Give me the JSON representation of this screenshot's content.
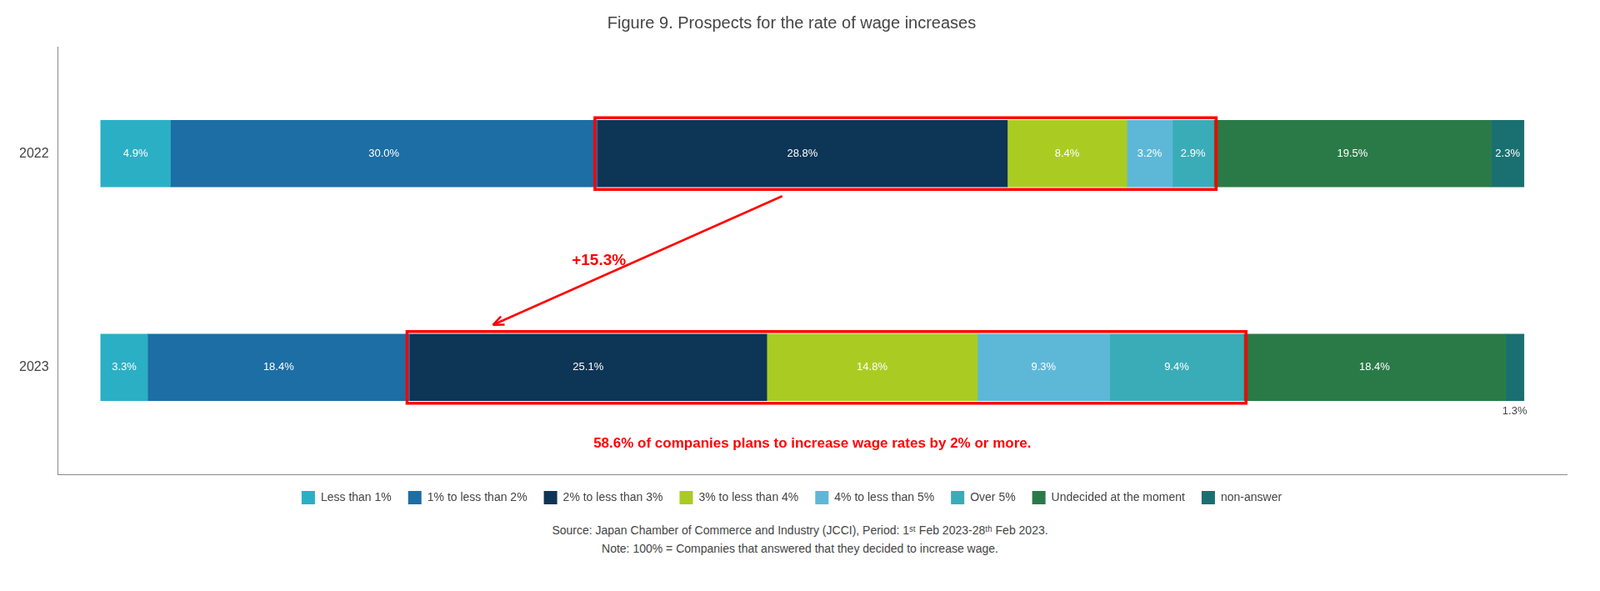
{
  "chart_data": {
    "type": "bar",
    "orientation": "horizontal",
    "stacked": true,
    "title": "Figure 9. Prospects for the rate of wage increases",
    "categories": [
      "2022",
      "2023"
    ],
    "series": [
      {
        "name": "Less than 1%",
        "color": "#2BAFC5",
        "values": [
          4.9,
          3.3
        ],
        "value_labels": [
          "4.9%",
          "3.3%"
        ]
      },
      {
        "name": "1% to less than 2%",
        "color": "#1C6EA4",
        "values": [
          30.0,
          18.4
        ],
        "value_labels": [
          "30.0%",
          "18.4%"
        ]
      },
      {
        "name": "2% to less than 3%",
        "color": "#0D3555",
        "values": [
          28.8,
          25.1
        ],
        "value_labels": [
          "28.8%",
          "25.1%"
        ]
      },
      {
        "name": "3% to less than 4%",
        "color": "#AACC22",
        "values": [
          8.4,
          14.8
        ],
        "value_labels": [
          "8.4%",
          "14.8%"
        ]
      },
      {
        "name": "4% to less than 5%",
        "color": "#5DB8D8",
        "values": [
          3.2,
          9.3
        ],
        "value_labels": [
          "3.2%",
          "9.3%"
        ]
      },
      {
        "name": "Over 5%",
        "color": "#3AACB8",
        "values": [
          2.9,
          9.4
        ],
        "value_labels": [
          "2.9%",
          "9.4%"
        ]
      },
      {
        "name": "Undecided at the moment",
        "color": "#2A7A48",
        "values": [
          19.5,
          18.4
        ],
        "value_labels": [
          "19.5%",
          "18.4%"
        ]
      },
      {
        "name": "non-answer",
        "color": "#1A7070",
        "values": [
          2.3,
          1.3
        ],
        "value_labels": [
          "2.3%",
          "1.3%"
        ]
      }
    ],
    "xlim": [
      -3,
      103
    ],
    "xticks": [],
    "tick_labels": "y",
    "grid": false,
    "legend": "bottom",
    "data_labels": true,
    "annotations": [
      "+15.3%",
      "58.6% of companies plans to increase wage rates by 2% or more."
    ],
    "source": [
      "Source: Japan Chamber of Commerce and Industry (JCCI), Period: 1ˢᵗ Feb 2023-28ᵗʰ Feb 2023.",
      "Note: 100% = Companies that answered that they decided to increase wage."
    ]
  }
}
